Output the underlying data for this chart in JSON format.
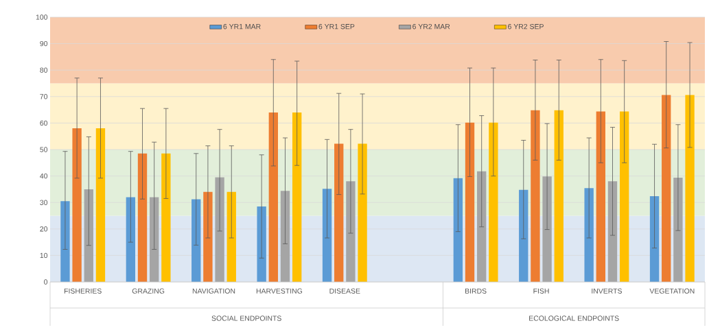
{
  "chart_data": {
    "type": "bar",
    "categories": [
      "FISHERIES",
      "GRAZING",
      "NAVIGATION",
      "HARVESTING",
      "DISEASE",
      null,
      "BIRDS",
      "FISH",
      "INVERTS",
      "VEGETATION"
    ],
    "series": [
      {
        "name": "6 YR1 MAR",
        "color": "#5b9bd5",
        "values": [
          30.5,
          32,
          31.2,
          28.5,
          35.2,
          null,
          39.2,
          34.8,
          35.4,
          32.4
        ],
        "errors": [
          [
            12.3,
            49.3
          ],
          [
            15,
            49.3
          ],
          [
            13.9,
            48.5
          ],
          [
            9,
            48
          ],
          [
            16.6,
            53.8
          ],
          null,
          [
            19,
            59.4
          ],
          [
            16.3,
            53.5
          ],
          [
            16.6,
            54.4
          ],
          [
            12.8,
            52
          ]
        ]
      },
      {
        "name": "6 YR1 SEP",
        "color": "#ed7d31",
        "values": [
          58,
          48.5,
          34,
          64,
          52.2,
          null,
          60.2,
          64.8,
          64.4,
          70.6
        ],
        "errors": [
          [
            39.2,
            77
          ],
          [
            31.3,
            65.5
          ],
          [
            16.6,
            51.4
          ],
          [
            43.8,
            84
          ],
          [
            33,
            71.2
          ],
          null,
          [
            39.8,
            80.8
          ],
          [
            46,
            83.8
          ],
          [
            45,
            84
          ],
          [
            50.6,
            90.8
          ]
        ]
      },
      {
        "name": "6 YR2 MAR",
        "color": "#a5a5a5",
        "values": [
          35,
          32,
          39.5,
          34.4,
          38,
          null,
          41.8,
          39.8,
          38,
          39.4
        ],
        "errors": [
          [
            13.8,
            54.8
          ],
          [
            12.3,
            52.8
          ],
          [
            19.2,
            57.6
          ],
          [
            14.4,
            54.4
          ],
          [
            18.4,
            57.6
          ],
          null,
          [
            20.8,
            62.8
          ],
          [
            19.8,
            59.8
          ],
          [
            17.6,
            58.4
          ],
          [
            19.4,
            59.4
          ]
        ]
      },
      {
        "name": "6 YR2 SEP",
        "color": "#ffc000",
        "values": [
          58,
          48.5,
          34,
          64,
          52.2,
          null,
          60.2,
          64.8,
          64.4,
          70.6
        ],
        "errors": [
          [
            39.2,
            77
          ],
          [
            31.5,
            65.5
          ],
          [
            16.6,
            51.4
          ],
          [
            44,
            83.4
          ],
          [
            33.2,
            71
          ],
          null,
          [
            40,
            80.8
          ],
          [
            46,
            83.8
          ],
          [
            45,
            83.6
          ],
          [
            50.8,
            90.4
          ]
        ]
      }
    ],
    "ylim": [
      0,
      100
    ],
    "yticks": [
      0,
      10,
      20,
      30,
      40,
      50,
      60,
      70,
      80,
      90,
      100
    ],
    "grid": "y",
    "legend": "top",
    "bands": [
      {
        "axis": "y",
        "from": 0,
        "to": 25,
        "color": "#dde7f3"
      },
      {
        "axis": "y",
        "from": 25,
        "to": 50,
        "color": "#e2efda"
      },
      {
        "axis": "y",
        "from": 50,
        "to": 75,
        "color": "#fff2cc"
      },
      {
        "axis": "y",
        "from": 75,
        "to": 100,
        "color": "#f8cbad"
      }
    ],
    "annotations": [
      "SOCIAL ENDPOINTS",
      "ECOLOGICAL ENDPOINTS"
    ]
  }
}
